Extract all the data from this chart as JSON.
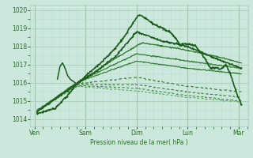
{
  "bg_color": "#cce8dc",
  "grid_major_color": "#aaccbb",
  "grid_minor_color": "#bbddd0",
  "line_color_dark": "#1a5c1a",
  "line_color_mid": "#2d7a2d",
  "line_color_light": "#4a9a4a",
  "ylim": [
    1013.6,
    1020.3
  ],
  "yticks": [
    1014,
    1015,
    1016,
    1017,
    1018,
    1019,
    1020
  ],
  "xlabel": "Pression niveau de la mer( hPa )",
  "tick_color": "#2d6b2d",
  "xtick_labels": [
    "Ven",
    "Sam",
    "Dim",
    "Lun",
    "Mar"
  ],
  "xtick_positions": [
    0,
    1,
    2,
    3,
    4
  ],
  "figsize": [
    3.2,
    2.0
  ],
  "dpi": 100
}
